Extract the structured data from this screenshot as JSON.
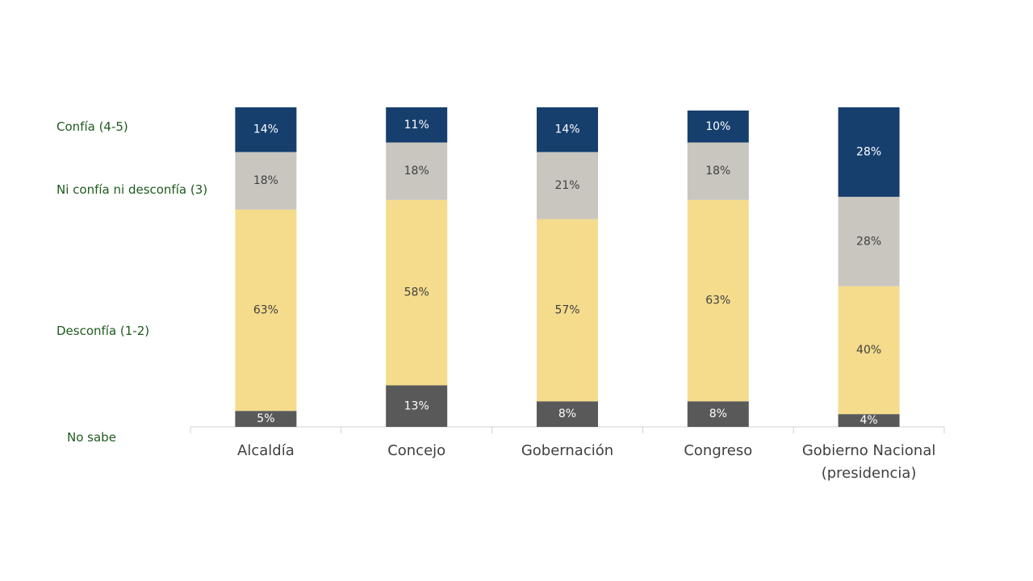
{
  "chart_data": {
    "type": "stacked_bar",
    "categories": [
      "Alcaldía",
      "Concejo",
      "Gobernación",
      "Congreso",
      "Gobierno Nacional (presidencia)"
    ],
    "series": [
      {
        "name": "No sabe",
        "color": "#595959",
        "values": [
          5,
          13,
          8,
          8,
          4
        ],
        "value_labels": [
          "5%",
          "13%",
          "8%",
          "8%",
          "4%"
        ]
      },
      {
        "name": "Desconfía (1-2)",
        "color": "#f5dc8c",
        "values": [
          63,
          58,
          57,
          63,
          40
        ],
        "value_labels": [
          "63%",
          "58%",
          "57%",
          "63%",
          "40%"
        ]
      },
      {
        "name": "Ni confía ni desconfía (3)",
        "color": "#c9c6bf",
        "values": [
          18,
          18,
          21,
          18,
          28
        ],
        "value_labels": [
          "18%",
          "18%",
          "21%",
          "18%",
          "28%"
        ]
      },
      {
        "name": "Confía (4-5)",
        "color": "#163f6e",
        "values": [
          14,
          11,
          14,
          10,
          28
        ],
        "value_labels": [
          "14%",
          "11%",
          "14%",
          "10%",
          "28%"
        ]
      }
    ]
  }
}
